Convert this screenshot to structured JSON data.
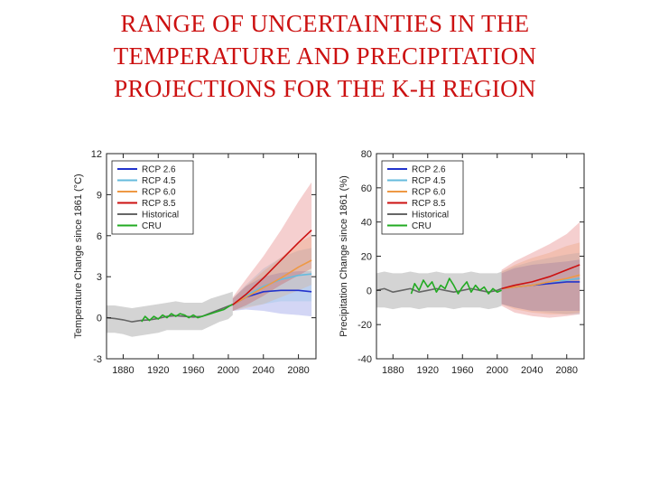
{
  "title": {
    "line1": "RANGE OF UNCERTAINTIES IN THE",
    "line2": "TEMPERATURE AND PRECIPITATION",
    "line3": "PROJECTIONS FOR THE K-H REGION"
  },
  "chart_data": [
    {
      "type": "line",
      "ylabel": "Temperature Change since 1861 (°C)",
      "xlabel": "",
      "xlim": [
        1861,
        2100
      ],
      "ylim": [
        -3,
        12
      ],
      "xticks": [
        1880,
        1920,
        1960,
        2000,
        2040,
        2080
      ],
      "yticks": [
        -3,
        0,
        3,
        6,
        9,
        12
      ],
      "legend_position": "top-left",
      "series": [
        {
          "name": "RCP 2.6",
          "color": "#2233cc",
          "x": [
            2005,
            2020,
            2040,
            2060,
            2080,
            2095
          ],
          "y": [
            0.95,
            1.5,
            1.9,
            2.0,
            2.0,
            1.9
          ],
          "band_low": [
            0.5,
            0.6,
            0.5,
            0.3,
            0.2,
            0.1
          ],
          "band_high": [
            1.4,
            2.3,
            3.0,
            3.3,
            3.4,
            3.4
          ]
        },
        {
          "name": "RCP 4.5",
          "color": "#66bbdd",
          "x": [
            2005,
            2020,
            2040,
            2060,
            2080,
            2095
          ],
          "y": [
            0.95,
            1.6,
            2.3,
            2.8,
            3.1,
            3.2
          ],
          "band_low": [
            0.5,
            0.8,
            1.0,
            1.2,
            1.2,
            1.2
          ],
          "band_high": [
            1.4,
            2.4,
            3.6,
            4.4,
            4.9,
            5.1
          ]
        },
        {
          "name": "RCP 6.0",
          "color": "#ee9944",
          "x": [
            2005,
            2020,
            2040,
            2060,
            2080,
            2095
          ],
          "y": [
            0.95,
            1.5,
            2.2,
            2.9,
            3.7,
            4.2
          ],
          "band_low": [
            0.5,
            0.7,
            1.0,
            1.5,
            2.0,
            2.4
          ],
          "band_high": [
            1.4,
            2.3,
            3.4,
            4.4,
            5.5,
            6.0
          ]
        },
        {
          "name": "RCP 8.5",
          "color": "#cc1111",
          "x": [
            2005,
            2020,
            2040,
            2060,
            2080,
            2095
          ],
          "y": [
            0.95,
            1.7,
            2.9,
            4.2,
            5.5,
            6.4
          ],
          "band_low": [
            0.5,
            0.9,
            1.6,
            2.4,
            3.1,
            3.6
          ],
          "band_high": [
            1.5,
            2.8,
            4.5,
            6.4,
            8.5,
            9.9
          ]
        },
        {
          "name": "Historical",
          "color": "#666666",
          "x": [
            1861,
            1870,
            1880,
            1890,
            1900,
            1910,
            1920,
            1930,
            1940,
            1950,
            1960,
            1970,
            1980,
            1990,
            2000,
            2005
          ],
          "y": [
            0.0,
            -0.05,
            -0.15,
            -0.3,
            -0.2,
            -0.15,
            -0.05,
            0.1,
            0.15,
            0.1,
            0.05,
            0.1,
            0.35,
            0.6,
            0.85,
            0.95
          ],
          "band_low": [
            -1.1,
            -1.1,
            -1.2,
            -1.4,
            -1.3,
            -1.2,
            -1.1,
            -0.9,
            -0.9,
            -0.9,
            -0.9,
            -0.9,
            -0.6,
            -0.3,
            -0.1,
            0.2
          ],
          "band_high": [
            0.9,
            0.9,
            0.8,
            0.7,
            0.8,
            0.9,
            1.0,
            1.1,
            1.2,
            1.1,
            1.1,
            1.1,
            1.4,
            1.6,
            1.8,
            1.9
          ]
        },
        {
          "name": "CRU",
          "color": "#22aa22",
          "x": [
            1901,
            1905,
            1910,
            1915,
            1920,
            1925,
            1930,
            1935,
            1940,
            1945,
            1950,
            1955,
            1960,
            1965,
            1970,
            1975,
            1980,
            1985,
            1990,
            1995,
            2000,
            2005
          ],
          "y": [
            -0.3,
            0.1,
            -0.2,
            0.1,
            -0.1,
            0.2,
            0.0,
            0.3,
            0.1,
            0.3,
            0.2,
            0.0,
            0.2,
            0.0,
            0.1,
            0.2,
            0.3,
            0.4,
            0.5,
            0.6,
            0.8,
            1.0
          ]
        }
      ]
    },
    {
      "type": "line",
      "ylabel": "Precipitation Change since 1861 (%)",
      "xlabel": "",
      "xlim": [
        1861,
        2100
      ],
      "ylim": [
        -40,
        80
      ],
      "xticks": [
        1880,
        1920,
        1960,
        2000,
        2040,
        2080
      ],
      "yticks": [
        -40,
        -20,
        0,
        20,
        40,
        60,
        80
      ],
      "legend_position": "top-left",
      "series": [
        {
          "name": "RCP 2.6",
          "color": "#2233cc",
          "x": [
            2005,
            2020,
            2040,
            2060,
            2080,
            2095
          ],
          "y": [
            1,
            2,
            3,
            4,
            5,
            5
          ],
          "band_low": [
            -8,
            -10,
            -12,
            -12,
            -12,
            -12
          ],
          "band_high": [
            10,
            13,
            15,
            16,
            17,
            18
          ]
        },
        {
          "name": "RCP 4.5",
          "color": "#66bbdd",
          "x": [
            2005,
            2020,
            2040,
            2060,
            2080,
            2095
          ],
          "y": [
            1,
            2,
            3,
            5,
            6,
            7
          ],
          "band_low": [
            -8,
            -10,
            -12,
            -13,
            -14,
            -14
          ],
          "band_high": [
            11,
            14,
            17,
            19,
            21,
            22
          ]
        },
        {
          "name": "RCP 6.0",
          "color": "#ee9944",
          "x": [
            2005,
            2020,
            2040,
            2060,
            2080,
            2095
          ],
          "y": [
            1,
            2,
            3,
            5,
            7,
            9
          ],
          "band_low": [
            -8,
            -11,
            -13,
            -14,
            -14,
            -13
          ],
          "band_high": [
            11,
            15,
            19,
            22,
            26,
            28
          ]
        },
        {
          "name": "RCP 8.5",
          "color": "#cc1111",
          "x": [
            2005,
            2020,
            2040,
            2060,
            2080,
            2095
          ],
          "y": [
            1,
            3,
            5,
            8,
            12,
            15
          ],
          "band_low": [
            -9,
            -13,
            -15,
            -16,
            -15,
            -14
          ],
          "band_high": [
            12,
            17,
            22,
            27,
            33,
            40
          ]
        },
        {
          "name": "Historical",
          "color": "#666666",
          "x": [
            1861,
            1870,
            1880,
            1890,
            1900,
            1910,
            1920,
            1930,
            1940,
            1950,
            1960,
            1970,
            1980,
            1990,
            2000,
            2005
          ],
          "y": [
            0,
            1,
            -1,
            0,
            1,
            -1,
            0,
            1,
            0,
            -1,
            0,
            1,
            0,
            -1,
            0,
            1
          ],
          "band_low": [
            -10,
            -10,
            -11,
            -10,
            -10,
            -11,
            -10,
            -10,
            -10,
            -11,
            -10,
            -10,
            -10,
            -11,
            -10,
            -9
          ],
          "band_high": [
            10,
            11,
            10,
            10,
            11,
            10,
            10,
            11,
            10,
            10,
            10,
            11,
            10,
            10,
            10,
            11
          ]
        },
        {
          "name": "CRU",
          "color": "#22aa22",
          "x": [
            1901,
            1905,
            1910,
            1915,
            1920,
            1925,
            1930,
            1935,
            1940,
            1945,
            1950,
            1955,
            1960,
            1965,
            1970,
            1975,
            1980,
            1985,
            1990,
            1995,
            2000,
            2005
          ],
          "y": [
            -2,
            4,
            0,
            6,
            2,
            5,
            -1,
            3,
            1,
            7,
            3,
            -2,
            2,
            5,
            -1,
            3,
            0,
            2,
            -2,
            1,
            -1,
            0
          ]
        }
      ]
    }
  ]
}
